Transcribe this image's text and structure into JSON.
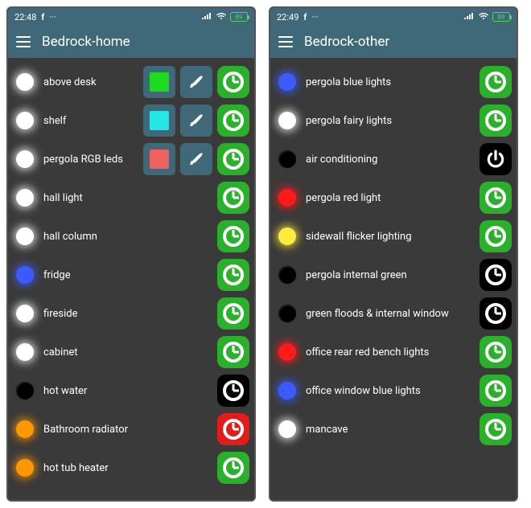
{
  "screens": [
    {
      "status": {
        "time": "22:48",
        "app_glyph": "f",
        "battery": "89"
      },
      "title": "Bedrock-home",
      "rows": [
        {
          "indicator": "glow-white",
          "label": "above desk",
          "swatch": "#1fdb1f",
          "action": {
            "icon": "clock",
            "bg": "bg-green"
          }
        },
        {
          "indicator": "glow-white",
          "label": "shelf",
          "swatch": "#24e6e6",
          "action": {
            "icon": "clock",
            "bg": "bg-green"
          }
        },
        {
          "indicator": "glow-white",
          "label": "pergola RGB leds",
          "swatch": "#f06262",
          "action": {
            "icon": "clock",
            "bg": "bg-green"
          }
        },
        {
          "indicator": "glow-white",
          "label": "hall light",
          "action": {
            "icon": "clock",
            "bg": "bg-green"
          }
        },
        {
          "indicator": "glow-white",
          "label": "hall column",
          "action": {
            "icon": "clock",
            "bg": "bg-green"
          }
        },
        {
          "indicator": "glow-blue",
          "label": "fridge",
          "action": {
            "icon": "clock",
            "bg": "bg-green"
          }
        },
        {
          "indicator": "glow-white",
          "label": "fireside",
          "action": {
            "icon": "clock",
            "bg": "bg-green"
          }
        },
        {
          "indicator": "glow-white",
          "label": "cabinet",
          "action": {
            "icon": "clock",
            "bg": "bg-green"
          }
        },
        {
          "indicator": "dark",
          "label": "hot water",
          "action": {
            "icon": "clock",
            "bg": "bg-black"
          }
        },
        {
          "indicator": "glow-orange",
          "label": "Bathroom radiator",
          "action": {
            "icon": "clock",
            "bg": "bg-red"
          }
        },
        {
          "indicator": "glow-orange",
          "label": "hot tub heater",
          "action": {
            "icon": "clock",
            "bg": "bg-green"
          }
        }
      ]
    },
    {
      "status": {
        "time": "22:49",
        "app_glyph": "f",
        "battery": "89"
      },
      "title": "Bedrock-other",
      "rows": [
        {
          "indicator": "glow-blue",
          "label": "pergola blue lights",
          "action": {
            "icon": "clock",
            "bg": "bg-green"
          }
        },
        {
          "indicator": "glow-white",
          "label": "pergola fairy lights",
          "action": {
            "icon": "clock",
            "bg": "bg-green"
          }
        },
        {
          "indicator": "dark",
          "label": "air conditioning",
          "action": {
            "icon": "power",
            "bg": "bg-black"
          }
        },
        {
          "indicator": "glow-red",
          "label": "pergola red light",
          "action": {
            "icon": "clock",
            "bg": "bg-green"
          }
        },
        {
          "indicator": "glow-yellow",
          "label": "sidewall flicker lighting",
          "action": {
            "icon": "clock",
            "bg": "bg-green"
          }
        },
        {
          "indicator": "dark",
          "label": "pergola internal green",
          "action": {
            "icon": "clock",
            "bg": "bg-black"
          }
        },
        {
          "indicator": "dark",
          "label": "green floods & internal window",
          "action": {
            "icon": "clock",
            "bg": "bg-black"
          }
        },
        {
          "indicator": "glow-red",
          "label": "office rear red bench lights",
          "action": {
            "icon": "clock",
            "bg": "bg-green"
          }
        },
        {
          "indicator": "glow-blue",
          "label": "office window blue lights",
          "action": {
            "icon": "clock",
            "bg": "bg-green"
          }
        },
        {
          "indicator": "glow-white",
          "label": "mancave",
          "action": {
            "icon": "clock",
            "bg": "bg-green"
          }
        }
      ]
    }
  ],
  "colors": {
    "appbar": "#3f6878",
    "phone_bg": "#3a3a3a"
  }
}
